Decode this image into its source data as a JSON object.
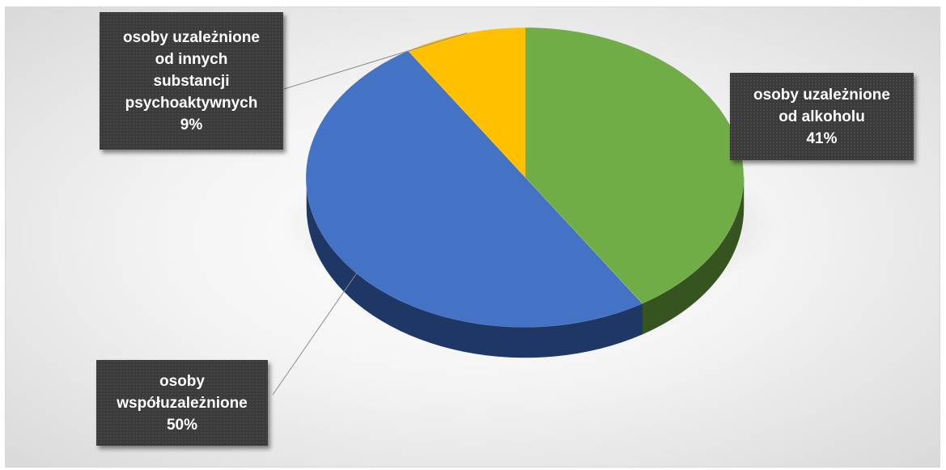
{
  "chart_data": {
    "type": "pie",
    "variant": "3d",
    "title": "",
    "categories": [
      "osoby uzależnione od alkoholu",
      "osoby współuzależnione",
      "osoby uzależnione od innych substancji psychoaktywnych"
    ],
    "values": [
      41,
      50,
      9
    ],
    "unit": "%",
    "colors": [
      "#70ad47",
      "#4472c4",
      "#ffc000"
    ],
    "side_colors": [
      "#35541f",
      "#1f3764",
      "#7f6000"
    ],
    "labels": [
      {
        "lines": [
          "osoby uzależnione",
          "od alkoholu"
        ],
        "pct": "41%"
      },
      {
        "lines": [
          "osoby",
          "współuzależnione"
        ],
        "pct": "50%"
      },
      {
        "lines": [
          "osoby uzależnione",
          "od innych",
          "substancji",
          "psychoaktywnych"
        ],
        "pct": "9%"
      }
    ],
    "legend": "none",
    "data_labels": "callouts"
  }
}
